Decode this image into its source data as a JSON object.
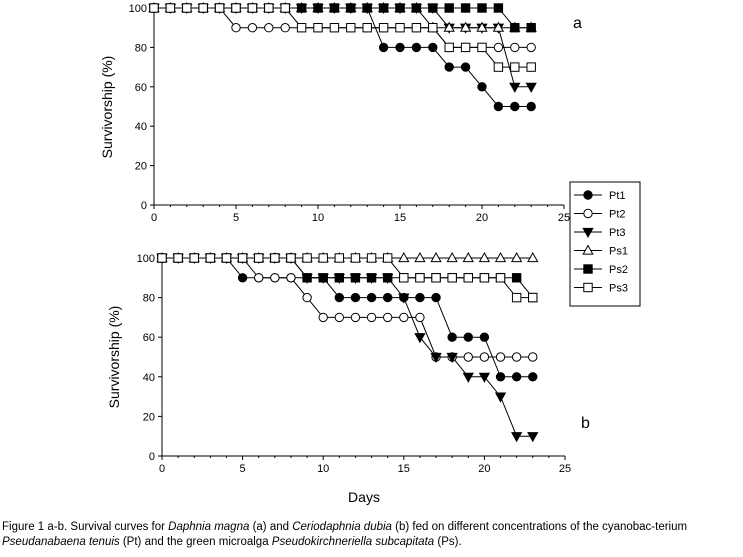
{
  "chart_data": [
    {
      "type": "line",
      "panel_label": "a",
      "xlabel": "",
      "ylabel": "Survivorship (%)",
      "xlim": [
        0,
        25
      ],
      "ylim": [
        0,
        100
      ],
      "xticks": [
        0,
        5,
        10,
        15,
        20,
        25
      ],
      "yticks": [
        0,
        20,
        40,
        60,
        80,
        100
      ],
      "grid": false,
      "x": [
        0,
        1,
        2,
        3,
        4,
        5,
        6,
        7,
        8,
        9,
        10,
        11,
        12,
        13,
        14,
        15,
        16,
        17,
        18,
        19,
        20,
        21,
        22,
        23
      ],
      "series": [
        {
          "name": "Pt1",
          "marker": "filled-circle",
          "values": [
            100,
            100,
            100,
            100,
            100,
            100,
            100,
            100,
            100,
            100,
            100,
            100,
            100,
            100,
            80,
            80,
            80,
            80,
            70,
            70,
            60,
            50,
            50,
            50
          ]
        },
        {
          "name": "Pt2",
          "marker": "open-circle",
          "values": [
            100,
            100,
            100,
            100,
            100,
            90,
            90,
            90,
            90,
            90,
            90,
            90,
            90,
            90,
            90,
            90,
            90,
            90,
            80,
            80,
            80,
            80,
            80,
            80
          ]
        },
        {
          "name": "Pt3",
          "marker": "filled-triangle-down",
          "values": [
            100,
            100,
            100,
            100,
            100,
            100,
            100,
            100,
            100,
            100,
            100,
            100,
            100,
            100,
            100,
            100,
            100,
            100,
            90,
            90,
            90,
            90,
            60,
            60
          ]
        },
        {
          "name": "Ps1",
          "marker": "open-triangle-up",
          "values": [
            100,
            100,
            100,
            100,
            100,
            100,
            100,
            100,
            100,
            100,
            100,
            100,
            100,
            100,
            100,
            100,
            100,
            90,
            90,
            90,
            90,
            90,
            90,
            90
          ]
        },
        {
          "name": "Ps2",
          "marker": "filled-square",
          "values": [
            100,
            100,
            100,
            100,
            100,
            100,
            100,
            100,
            100,
            100,
            100,
            100,
            100,
            100,
            100,
            100,
            100,
            100,
            100,
            100,
            100,
            100,
            90,
            90
          ]
        },
        {
          "name": "Ps3",
          "marker": "open-square",
          "values": [
            100,
            100,
            100,
            100,
            100,
            100,
            100,
            100,
            100,
            90,
            90,
            90,
            90,
            90,
            90,
            90,
            90,
            90,
            80,
            80,
            80,
            70,
            70,
            70
          ]
        }
      ]
    },
    {
      "type": "line",
      "panel_label": "b",
      "xlabel": "Days",
      "ylabel": "Survivorship (%)",
      "xlim": [
        0,
        25
      ],
      "ylim": [
        0,
        100
      ],
      "xticks": [
        0,
        5,
        10,
        15,
        20,
        25
      ],
      "yticks": [
        0,
        20,
        40,
        60,
        80,
        100
      ],
      "grid": false,
      "legend_position": "top-right",
      "x": [
        0,
        1,
        2,
        3,
        4,
        5,
        6,
        7,
        8,
        9,
        10,
        11,
        12,
        13,
        14,
        15,
        16,
        17,
        18,
        19,
        20,
        21,
        22,
        23
      ],
      "series": [
        {
          "name": "Pt1",
          "marker": "filled-circle",
          "values": [
            100,
            100,
            100,
            100,
            100,
            90,
            90,
            90,
            90,
            90,
            90,
            80,
            80,
            80,
            80,
            80,
            80,
            80,
            60,
            60,
            60,
            40,
            40,
            40
          ]
        },
        {
          "name": "Pt2",
          "marker": "open-circle",
          "values": [
            100,
            100,
            100,
            100,
            100,
            100,
            90,
            90,
            90,
            80,
            70,
            70,
            70,
            70,
            70,
            70,
            70,
            50,
            50,
            50,
            50,
            50,
            50,
            50
          ]
        },
        {
          "name": "Pt3",
          "marker": "filled-triangle-down",
          "values": [
            100,
            100,
            100,
            100,
            100,
            100,
            100,
            100,
            100,
            90,
            90,
            90,
            90,
            90,
            90,
            80,
            60,
            50,
            50,
            40,
            40,
            30,
            10,
            10
          ]
        },
        {
          "name": "Ps1",
          "marker": "open-triangle-up",
          "values": [
            100,
            100,
            100,
            100,
            100,
            100,
            100,
            100,
            100,
            100,
            100,
            100,
            100,
            100,
            100,
            100,
            100,
            100,
            100,
            100,
            100,
            100,
            100,
            100
          ]
        },
        {
          "name": "Ps2",
          "marker": "filled-square",
          "values": [
            100,
            100,
            100,
            100,
            100,
            100,
            100,
            100,
            100,
            90,
            90,
            90,
            90,
            90,
            90,
            90,
            90,
            90,
            90,
            90,
            90,
            90,
            90,
            80
          ]
        },
        {
          "name": "Ps3",
          "marker": "open-square",
          "values": [
            100,
            100,
            100,
            100,
            100,
            100,
            100,
            100,
            100,
            100,
            100,
            100,
            100,
            100,
            100,
            90,
            90,
            90,
            90,
            90,
            90,
            90,
            80,
            80
          ]
        }
      ]
    }
  ],
  "caption": {
    "p1": "Figure 1 a-b. Survival curves for ",
    "i1": "Daphnia magna",
    "p2": " (a) and ",
    "i2": "Ceriodaphnia dubia",
    "p3": " (b) fed on different concentrations of the cyanobac-terium ",
    "i3": "Pseudanabaena tenuis",
    "p4": " (Pt) and the green microalga ",
    "i4": "Pseudokirchneriella subcapitata",
    "p5": " (Ps)."
  }
}
